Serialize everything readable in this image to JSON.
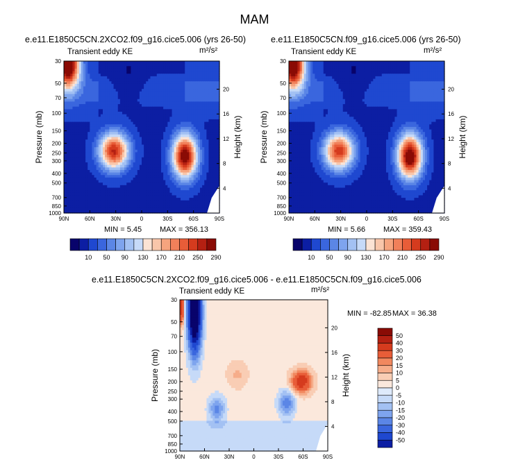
{
  "figure_title": "MAM",
  "colors": {
    "abs_palette": [
      "#08036b",
      "#0c1ea3",
      "#1f48d0",
      "#3a66de",
      "#5b86e6",
      "#7ea4ee",
      "#a3c1f3",
      "#c6daf8",
      "#fbe3d4",
      "#f9c6aa",
      "#f6a47e",
      "#f1805a",
      "#e85d38",
      "#d53b1e",
      "#b42012",
      "#8a0b05"
    ],
    "diff_palette": [
      "#08036b",
      "#0c1ea3",
      "#1f48d0",
      "#3a66de",
      "#5b86e6",
      "#7ea4ee",
      "#a3c1f3",
      "#c6daf8",
      "#deeafb",
      "#fbe8dc",
      "#f9cdb4",
      "#f6ad8a",
      "#f1885f",
      "#e85d38",
      "#d53b1e",
      "#b42012",
      "#8a0b05"
    ]
  },
  "chart_data": [
    {
      "type": "heatmap",
      "title": "e.e11.E1850C5CN.2XCO2.f09_g16.cice5.006 (yrs 26-50)",
      "subtitle_left": "Transient eddy KE",
      "units": "m²/s²",
      "xlabel": "",
      "ylabel": "Pressure (mb)",
      "ylabel_right": "Height (km)",
      "x_ticks": [
        "90N",
        "60N",
        "30N",
        "0",
        "30S",
        "60S",
        "90S"
      ],
      "y_ticks": [
        "30",
        "50",
        "70",
        "100",
        "150",
        "200",
        "250",
        "300",
        "400",
        "500",
        "700",
        "850",
        "1000"
      ],
      "y_right_ticks": [
        "20",
        "16",
        "12",
        "8",
        "4"
      ],
      "ylim": [
        1000,
        30
      ],
      "xlim": [
        "90N",
        "90S"
      ],
      "min": 5.45,
      "max": 356.13,
      "min_label": "MIN =   5.45",
      "max_label": "MAX = 356.13",
      "colorbar_labels": [
        "10",
        "50",
        "90",
        "130",
        "170",
        "210",
        "250",
        "290"
      ],
      "features": [
        {
          "lat": 32,
          "p": 240,
          "value": 280
        },
        {
          "lat": -50,
          "p": 270,
          "value": 320
        },
        {
          "lat": 85,
          "p": 32,
          "value": 350
        }
      ]
    },
    {
      "type": "heatmap",
      "title": "e.e11.E1850C5CN.f09_g16.cice5.006 (yrs 26-50)",
      "subtitle_left": "Transient eddy KE",
      "units": "m²/s²",
      "xlabel": "",
      "ylabel": "Pressure (mb)",
      "ylabel_right": "Height (km)",
      "x_ticks": [
        "90N",
        "60N",
        "30N",
        "0",
        "30S",
        "60S",
        "90S"
      ],
      "y_ticks": [
        "30",
        "50",
        "70",
        "100",
        "150",
        "200",
        "250",
        "300",
        "400",
        "500",
        "700",
        "850",
        "1000"
      ],
      "y_right_ticks": [
        "20",
        "16",
        "12",
        "8",
        "4"
      ],
      "ylim": [
        1000,
        30
      ],
      "xlim": [
        "90N",
        "90S"
      ],
      "min": 5.66,
      "max": 359.43,
      "min_label": "MIN =   5.66",
      "max_label": "MAX = 359.43",
      "colorbar_labels": [
        "10",
        "50",
        "90",
        "130",
        "170",
        "210",
        "250",
        "290"
      ],
      "features": [
        {
          "lat": 32,
          "p": 240,
          "value": 270
        },
        {
          "lat": -50,
          "p": 270,
          "value": 330
        },
        {
          "lat": 85,
          "p": 32,
          "value": 355
        }
      ]
    },
    {
      "type": "heatmap",
      "title": "e.e11.E1850C5CN.2XCO2.f09_g16.cice5.006 - e.e11.E1850C5CN.f09_g16.cice5.006",
      "subtitle_left": "Transient eddy KE",
      "units": "m²/s²",
      "xlabel": "",
      "ylabel": "Pressure (mb)",
      "ylabel_right": "Height (km)",
      "x_ticks": [
        "90N",
        "60N",
        "30N",
        "0",
        "30S",
        "60S",
        "90S"
      ],
      "y_ticks": [
        "30",
        "50",
        "70",
        "100",
        "150",
        "200",
        "250",
        "300",
        "400",
        "500",
        "700",
        "850",
        "1000"
      ],
      "y_right_ticks": [
        "20",
        "16",
        "12",
        "8",
        "4"
      ],
      "ylim": [
        1000,
        30
      ],
      "xlim": [
        "90N",
        "90S"
      ],
      "min": -82.85,
      "max": 36.38,
      "min_label": "MIN = -82.85",
      "max_label": "MAX =  36.38",
      "colorbar_labels": [
        "50",
        "40",
        "30",
        "20",
        "15",
        "10",
        "5",
        "0",
        "-5",
        "-10",
        "-15",
        "-20",
        "-30",
        "-40",
        "-50"
      ],
      "features": [
        {
          "lat": 72,
          "p": 40,
          "value": -82
        },
        {
          "lat": 45,
          "p": 380,
          "value": -20
        },
        {
          "lat": -40,
          "p": 330,
          "value": -22
        },
        {
          "lat": -58,
          "p": 200,
          "value": 36
        }
      ]
    }
  ]
}
